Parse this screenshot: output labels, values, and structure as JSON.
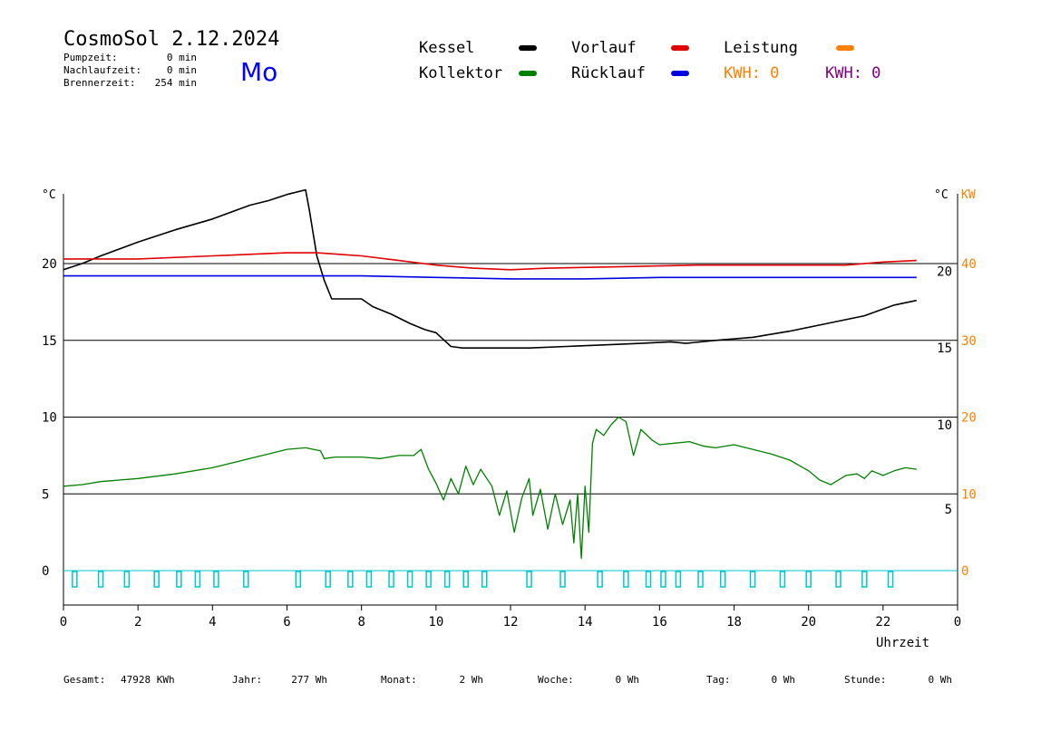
{
  "header": {
    "title": "CosmoSol 2.12.2024",
    "weekday": "Mo",
    "stats": [
      {
        "label": "Pumpzeit:",
        "value": "0 min"
      },
      {
        "label": "Nachlaufzeit:",
        "value": "0 min"
      },
      {
        "label": "Brennerzeit:",
        "value": "254 min"
      }
    ]
  },
  "legend": {
    "items": [
      {
        "label": "Kessel",
        "color": "#000000"
      },
      {
        "label": "Vorlauf",
        "color": "#e00000"
      },
      {
        "label": "Leistung",
        "color": "#ff8000"
      },
      {
        "label": "Kollektor",
        "color": "#008000"
      },
      {
        "label": "Rücklauf",
        "color": "#0000e0"
      }
    ],
    "kwh": [
      {
        "label": "KWH: 0",
        "color": "#ff8000"
      },
      {
        "label": "KWH: 0",
        "color": "#800080"
      }
    ]
  },
  "footer": {
    "items": [
      {
        "label": "Gesamt:",
        "value": "47928 KWh"
      },
      {
        "label": "Jahr:",
        "value": "277 Wh"
      },
      {
        "label": "Monat:",
        "value": "2 Wh"
      },
      {
        "label": "Woche:",
        "value": "0 Wh"
      },
      {
        "label": "Tag:",
        "value": "0 Wh"
      },
      {
        "label": "Stunde:",
        "value": "0 Wh"
      }
    ]
  },
  "chart_data": {
    "type": "line",
    "xlabel": "Uhrzeit",
    "xlim": [
      0,
      24
    ],
    "x_tick_labels": [
      "0",
      "2",
      "4",
      "6",
      "8",
      "10",
      "12",
      "14",
      "16",
      "18",
      "20",
      "22",
      "0"
    ],
    "left_axis": {
      "unit": "°C",
      "ylim": [
        -2,
        25
      ],
      "ticks": [
        0,
        5,
        10,
        15,
        20
      ]
    },
    "right_axis_celsius": {
      "unit": "°C",
      "labels": [
        {
          "label": "5",
          "at": 4.0
        },
        {
          "label": "10",
          "at": 9.5
        },
        {
          "label": "15",
          "at": 14.5
        },
        {
          "label": "20",
          "at": 19.5
        }
      ]
    },
    "right_axis_kw": {
      "unit": "KW",
      "ticks": [
        {
          "label": "0",
          "at": 0
        },
        {
          "label": "10",
          "at": 5
        },
        {
          "label": "20",
          "at": 10
        },
        {
          "label": "30",
          "at": 15
        },
        {
          "label": "40",
          "at": 20
        }
      ]
    },
    "grid_y": [
      5,
      10,
      15,
      20
    ],
    "series": [
      {
        "name": "Kessel",
        "color": "#000000",
        "x": [
          0,
          0.5,
          1,
          2,
          3,
          4,
          5,
          5.5,
          6,
          6.5,
          6.6,
          6.8,
          7.0,
          7.2,
          7.5,
          8.0,
          8.3,
          8.8,
          9.3,
          9.7,
          10.0,
          10.4,
          10.7,
          11.5,
          12.5,
          13.5,
          14.5,
          15.5,
          16.3,
          16.7,
          17.5,
          18.5,
          19.5,
          20.5,
          21.5,
          22.3,
          22.9
        ],
        "y": [
          19.6,
          20.0,
          20.5,
          21.4,
          22.2,
          22.9,
          23.8,
          24.1,
          24.5,
          24.8,
          23.5,
          20.5,
          18.9,
          17.7,
          17.7,
          17.7,
          17.2,
          16.7,
          16.1,
          15.7,
          15.5,
          14.6,
          14.5,
          14.5,
          14.5,
          14.6,
          14.7,
          14.8,
          14.9,
          14.8,
          15.0,
          15.2,
          15.6,
          16.1,
          16.6,
          17.3,
          17.6
        ]
      },
      {
        "name": "Vorlauf",
        "color": "#e00000",
        "x": [
          0,
          2,
          4,
          6,
          6.8,
          8,
          9,
          10,
          11,
          12,
          13,
          15,
          17,
          19,
          20,
          21,
          22,
          22.9
        ],
        "y": [
          20.3,
          20.3,
          20.5,
          20.7,
          20.7,
          20.5,
          20.2,
          19.9,
          19.7,
          19.6,
          19.7,
          19.8,
          19.9,
          19.9,
          19.9,
          19.9,
          20.1,
          20.2
        ]
      },
      {
        "name": "Rücklauf",
        "color": "#0000e0",
        "x": [
          0,
          2,
          4,
          6,
          7,
          8,
          10,
          12,
          14,
          16,
          18,
          20,
          22,
          22.9
        ],
        "y": [
          19.2,
          19.2,
          19.2,
          19.2,
          19.2,
          19.2,
          19.1,
          19.0,
          19.0,
          19.1,
          19.1,
          19.1,
          19.1,
          19.1
        ]
      },
      {
        "name": "Kollektor",
        "color": "#008000",
        "x": [
          0,
          0.5,
          1,
          2,
          3,
          4,
          5,
          5.5,
          6,
          6.5,
          6.9,
          7.0,
          7.3,
          8,
          8.5,
          9,
          9.4,
          9.6,
          9.8,
          10.0,
          10.2,
          10.4,
          10.6,
          10.8,
          11.0,
          11.2,
          11.5,
          11.7,
          11.9,
          12.1,
          12.3,
          12.5,
          12.6,
          12.8,
          13.0,
          13.2,
          13.4,
          13.6,
          13.7,
          13.8,
          13.9,
          14.0,
          14.1,
          14.2,
          14.3,
          14.5,
          14.7,
          14.9,
          15.1,
          15.3,
          15.5,
          15.8,
          16.0,
          16.4,
          16.8,
          17.2,
          17.5,
          18,
          18.5,
          19,
          19.5,
          20,
          20.3,
          20.6,
          21,
          21.3,
          21.5,
          21.7,
          22,
          22.3,
          22.6,
          22.9
        ],
        "y": [
          5.5,
          5.6,
          5.8,
          6.0,
          6.3,
          6.7,
          7.3,
          7.6,
          7.9,
          8.0,
          7.8,
          7.3,
          7.4,
          7.4,
          7.3,
          7.5,
          7.5,
          7.9,
          6.6,
          5.7,
          4.6,
          6.0,
          5.0,
          6.8,
          5.6,
          6.6,
          5.5,
          3.6,
          5.2,
          2.5,
          4.7,
          6.0,
          3.6,
          5.3,
          2.7,
          5.0,
          3.0,
          4.6,
          1.8,
          5.0,
          0.8,
          5.5,
          2.5,
          8.3,
          9.2,
          8.8,
          9.5,
          10.0,
          9.7,
          7.5,
          9.2,
          8.5,
          8.2,
          8.3,
          8.4,
          8.1,
          8.0,
          8.2,
          7.9,
          7.6,
          7.2,
          6.5,
          5.9,
          5.6,
          6.2,
          6.3,
          6.0,
          6.5,
          6.2,
          6.5,
          6.7,
          6.6
        ]
      }
    ],
    "pulses": [
      0.3,
      1.0,
      1.7,
      2.5,
      3.1,
      3.6,
      4.1,
      4.9,
      6.3,
      7.1,
      7.7,
      8.2,
      8.8,
      9.3,
      9.8,
      10.3,
      10.8,
      11.3,
      12.5,
      13.4,
      14.4,
      15.1,
      15.7,
      16.1,
      16.5,
      17.1,
      17.7,
      18.5,
      19.3,
      20.0,
      20.8,
      21.5,
      22.2
    ]
  }
}
